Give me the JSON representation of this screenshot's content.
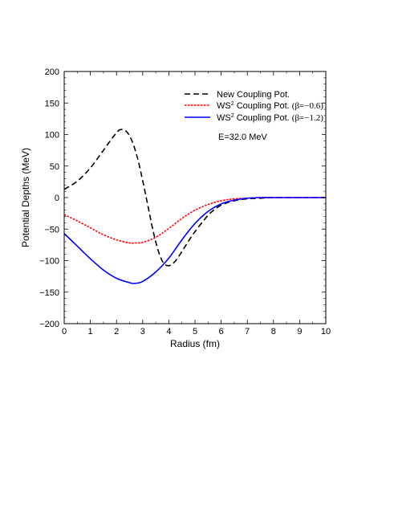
{
  "chart_data": {
    "type": "line",
    "xlabel": "Radius (fm)",
    "ylabel": "Potential Depths (MeV)",
    "xlim": [
      0,
      10
    ],
    "ylim": [
      -200,
      200
    ],
    "x_ticks": [
      0,
      1,
      2,
      3,
      4,
      5,
      6,
      7,
      8,
      9,
      10
    ],
    "y_ticks": [
      -200,
      -150,
      -100,
      -50,
      0,
      50,
      100,
      150,
      200
    ],
    "x_tick_labels": [
      "0",
      "1",
      "2",
      "3",
      "4",
      "5",
      "6",
      "7",
      "8",
      "9",
      "10"
    ],
    "y_tick_labels": [
      "−200",
      "−150",
      "−100",
      "−50",
      "0",
      "50",
      "100",
      "150",
      "200"
    ],
    "grid": false,
    "legend_position": "top-right",
    "annotation": "E=32.0 MeV",
    "series": [
      {
        "name": "New Coupling Pot.",
        "legend_prefix": "New Coupling Pot.",
        "legend_suffix": "",
        "color": "#000000",
        "dash": "long-dash",
        "x": [
          0,
          0.5,
          1.0,
          1.5,
          2.0,
          2.2,
          2.4,
          2.6,
          2.8,
          3.0,
          3.2,
          3.4,
          3.6,
          3.8,
          4.0,
          4.2,
          4.4,
          4.6,
          4.8,
          5.0,
          5.3,
          5.6,
          6.0,
          6.5,
          7.0,
          7.5,
          8.0,
          8.5,
          9.0,
          9.5,
          10.0
        ],
        "y": [
          13,
          26,
          47,
          75,
          103,
          108,
          104,
          89,
          63,
          27,
          -13,
          -53,
          -85,
          -104,
          -108,
          -103,
          -92,
          -79,
          -66,
          -54,
          -38,
          -24,
          -12,
          -5,
          -2,
          -1,
          0,
          0,
          0,
          0,
          0
        ]
      },
      {
        "name": "WS2 Coupling Pot. (β=−0.6)",
        "legend_prefix": "WS",
        "legend_sup": "2",
        "legend_mid": " Coupling Pot. ",
        "legend_paren": "(β=−0.6)",
        "color": "#ff0000",
        "dash": "short-dash",
        "x": [
          0,
          0.5,
          1.0,
          1.5,
          2.0,
          2.5,
          2.7,
          3.0,
          3.5,
          4.0,
          4.5,
          5.0,
          5.5,
          6.0,
          6.5,
          7.0,
          7.5,
          8.0,
          8.5,
          9.0,
          9.5,
          10.0
        ],
        "y": [
          -27,
          -37,
          -48,
          -59,
          -67,
          -72,
          -72,
          -71,
          -63,
          -49,
          -33,
          -20,
          -11,
          -5,
          -2,
          -1,
          0,
          0,
          0,
          0,
          0,
          0
        ]
      },
      {
        "name": "WS2 Coupling Pot. (β=−1.2)",
        "legend_prefix": "WS",
        "legend_sup": "2",
        "legend_mid": " Coupling Pot. ",
        "legend_paren": "(β=−1.2)",
        "color": "#0000ff",
        "dash": "solid",
        "x": [
          0,
          0.5,
          1.0,
          1.5,
          2.0,
          2.5,
          2.7,
          3.0,
          3.5,
          4.0,
          4.5,
          5.0,
          5.5,
          6.0,
          6.5,
          7.0,
          7.5,
          8.0,
          8.5,
          9.0,
          9.5,
          10.0
        ],
        "y": [
          -57,
          -77,
          -97,
          -115,
          -128,
          -135,
          -136,
          -133,
          -118,
          -96,
          -67,
          -41,
          -22,
          -10,
          -4,
          -1,
          0,
          0,
          0,
          0,
          0,
          0
        ]
      }
    ]
  }
}
